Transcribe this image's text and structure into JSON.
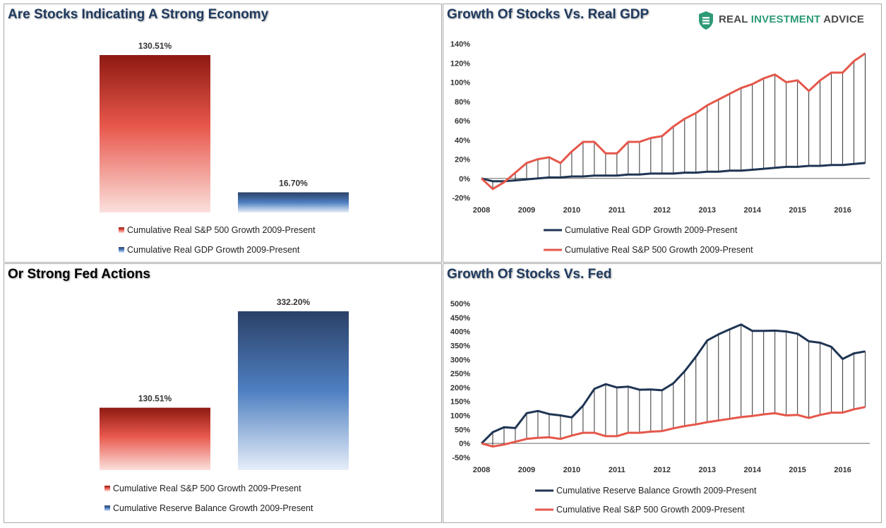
{
  "panels": {
    "p1": {
      "title": "Are Stocks Indicating A Strong Economy"
    },
    "p2": {
      "title": "Growth Of Stocks Vs. Real GDP"
    },
    "p3": {
      "title": "Or Strong Fed Actions"
    },
    "p4": {
      "title": "Growth Of Stocks Vs. Fed"
    }
  },
  "logo": {
    "brand_part1": "REAL ",
    "brand_part2": "INVESTMENT",
    "brand_part3": " ADVICE",
    "icon": "shield-logo-icon",
    "accent_color": "#2e9a77"
  },
  "colors": {
    "red_top": "#8e1a12",
    "red_mid": "#e8574b",
    "red_bottom": "#fbe0dd",
    "blue_top": "#2b4167",
    "blue_mid": "#4e7fc1",
    "blue_bottom": "#e6eef9",
    "navy_line": "#1f3553",
    "red_line": "#e5574a"
  },
  "chart_data": [
    {
      "type": "bar",
      "categories": [
        "Cumulative Real S&P 500 Growth 2009-Present",
        "Cumulative Real GDP Growth 2009-Present"
      ],
      "values": [
        130.51,
        16.7
      ],
      "data_labels": [
        "130.51%",
        "16.70%"
      ],
      "legend": [
        "Cumulative Real S&P 500 Growth 2009-Present",
        "Cumulative Real GDP Growth 2009-Present"
      ],
      "legend_position": "bottom"
    },
    {
      "type": "line",
      "xlim": [
        2008,
        2016.6
      ],
      "ylim": [
        -20,
        140
      ],
      "yticks": [
        -20,
        0,
        20,
        40,
        60,
        80,
        100,
        120,
        140
      ],
      "ytick_labels": [
        "-20%",
        "0%",
        "20%",
        "40%",
        "60%",
        "80%",
        "100%",
        "120%",
        "140%"
      ],
      "xticks": [
        2008,
        2009,
        2010,
        2011,
        2012,
        2013,
        2014,
        2015,
        2016
      ],
      "xtick_labels": [
        "2008",
        "2009",
        "2010",
        "2011",
        "2012",
        "2013",
        "2014",
        "2015",
        "2016"
      ],
      "x": [
        2008.0,
        2008.25,
        2008.5,
        2008.75,
        2009.0,
        2009.25,
        2009.5,
        2009.75,
        2010.0,
        2010.25,
        2010.5,
        2010.75,
        2011.0,
        2011.25,
        2011.5,
        2011.75,
        2012.0,
        2012.25,
        2012.5,
        2012.75,
        2013.0,
        2013.25,
        2013.5,
        2013.75,
        2014.0,
        2014.25,
        2014.5,
        2014.75,
        2015.0,
        2015.25,
        2015.5,
        2015.75,
        2016.0,
        2016.25,
        2016.5
      ],
      "series": [
        {
          "name": "Cumulative Real GDP Growth 2009-Present",
          "color": "#1f3553",
          "values": [
            0,
            -3,
            -3,
            -2,
            -1,
            0,
            1,
            1,
            2,
            2,
            3,
            3,
            3,
            4,
            4,
            5,
            5,
            5,
            6,
            6,
            7,
            7,
            8,
            8,
            9,
            10,
            11,
            12,
            12,
            13,
            13,
            14,
            14,
            15,
            16
          ]
        },
        {
          "name": "Cumulative Real S&P 500 Growth 2009-Present",
          "color": "#e5574a",
          "values": [
            0,
            -11,
            -4,
            6,
            16,
            20,
            22,
            16,
            28,
            38,
            38,
            26,
            26,
            38,
            38,
            42,
            44,
            54,
            62,
            68,
            76,
            82,
            88,
            94,
            98,
            104,
            108,
            100,
            102,
            91,
            102,
            110,
            110,
            122,
            130
          ]
        }
      ],
      "legend_position": "bottom"
    },
    {
      "type": "bar",
      "categories": [
        "Cumulative Real S&P 500 Growth 2009-Present",
        "Cumulative Reserve Balance Growth 2009-Present"
      ],
      "values": [
        130.51,
        332.2
      ],
      "data_labels": [
        "130.51%",
        "332.20%"
      ],
      "legend": [
        "Cumulative Real S&P 500 Growth 2009-Present",
        "Cumulative Reserve Balance Growth 2009-Present"
      ],
      "legend_position": "bottom"
    },
    {
      "type": "line",
      "xlim": [
        2008,
        2016.6
      ],
      "ylim": [
        -50,
        500
      ],
      "yticks": [
        -50,
        0,
        50,
        100,
        150,
        200,
        250,
        300,
        350,
        400,
        450,
        500
      ],
      "ytick_labels": [
        "-50%",
        "0%",
        "50%",
        "100%",
        "150%",
        "200%",
        "250%",
        "300%",
        "350%",
        "400%",
        "450%",
        "500%"
      ],
      "xticks": [
        2008,
        2009,
        2010,
        2011,
        2012,
        2013,
        2014,
        2015,
        2016
      ],
      "xtick_labels": [
        "2008",
        "2009",
        "2010",
        "2011",
        "2012",
        "2013",
        "2014",
        "2015",
        "2016"
      ],
      "x": [
        2008.0,
        2008.25,
        2008.5,
        2008.75,
        2009.0,
        2009.25,
        2009.5,
        2009.75,
        2010.0,
        2010.25,
        2010.5,
        2010.75,
        2011.0,
        2011.25,
        2011.5,
        2011.75,
        2012.0,
        2012.25,
        2012.5,
        2012.75,
        2013.0,
        2013.25,
        2013.5,
        2013.75,
        2014.0,
        2014.25,
        2014.5,
        2014.75,
        2015.0,
        2015.25,
        2015.5,
        2015.75,
        2016.0,
        2016.25,
        2016.5
      ],
      "series": [
        {
          "name": "Cumulative Reserve Balance Growth 2009-Present",
          "color": "#1f3553",
          "values": [
            0,
            40,
            58,
            55,
            108,
            116,
            105,
            100,
            93,
            135,
            195,
            212,
            200,
            203,
            192,
            193,
            190,
            215,
            258,
            310,
            368,
            390,
            408,
            425,
            402,
            402,
            403,
            400,
            392,
            365,
            360,
            345,
            302,
            322,
            329
          ]
        },
        {
          "name": "Cumulative Real S&P 500 Growth 2009-Present",
          "color": "#e5574a",
          "values": [
            0,
            -11,
            -4,
            6,
            16,
            20,
            22,
            16,
            28,
            38,
            38,
            26,
            26,
            38,
            38,
            42,
            44,
            54,
            62,
            68,
            76,
            82,
            88,
            94,
            98,
            104,
            108,
            100,
            102,
            91,
            102,
            110,
            110,
            122,
            130
          ]
        }
      ],
      "legend_position": "bottom"
    }
  ]
}
